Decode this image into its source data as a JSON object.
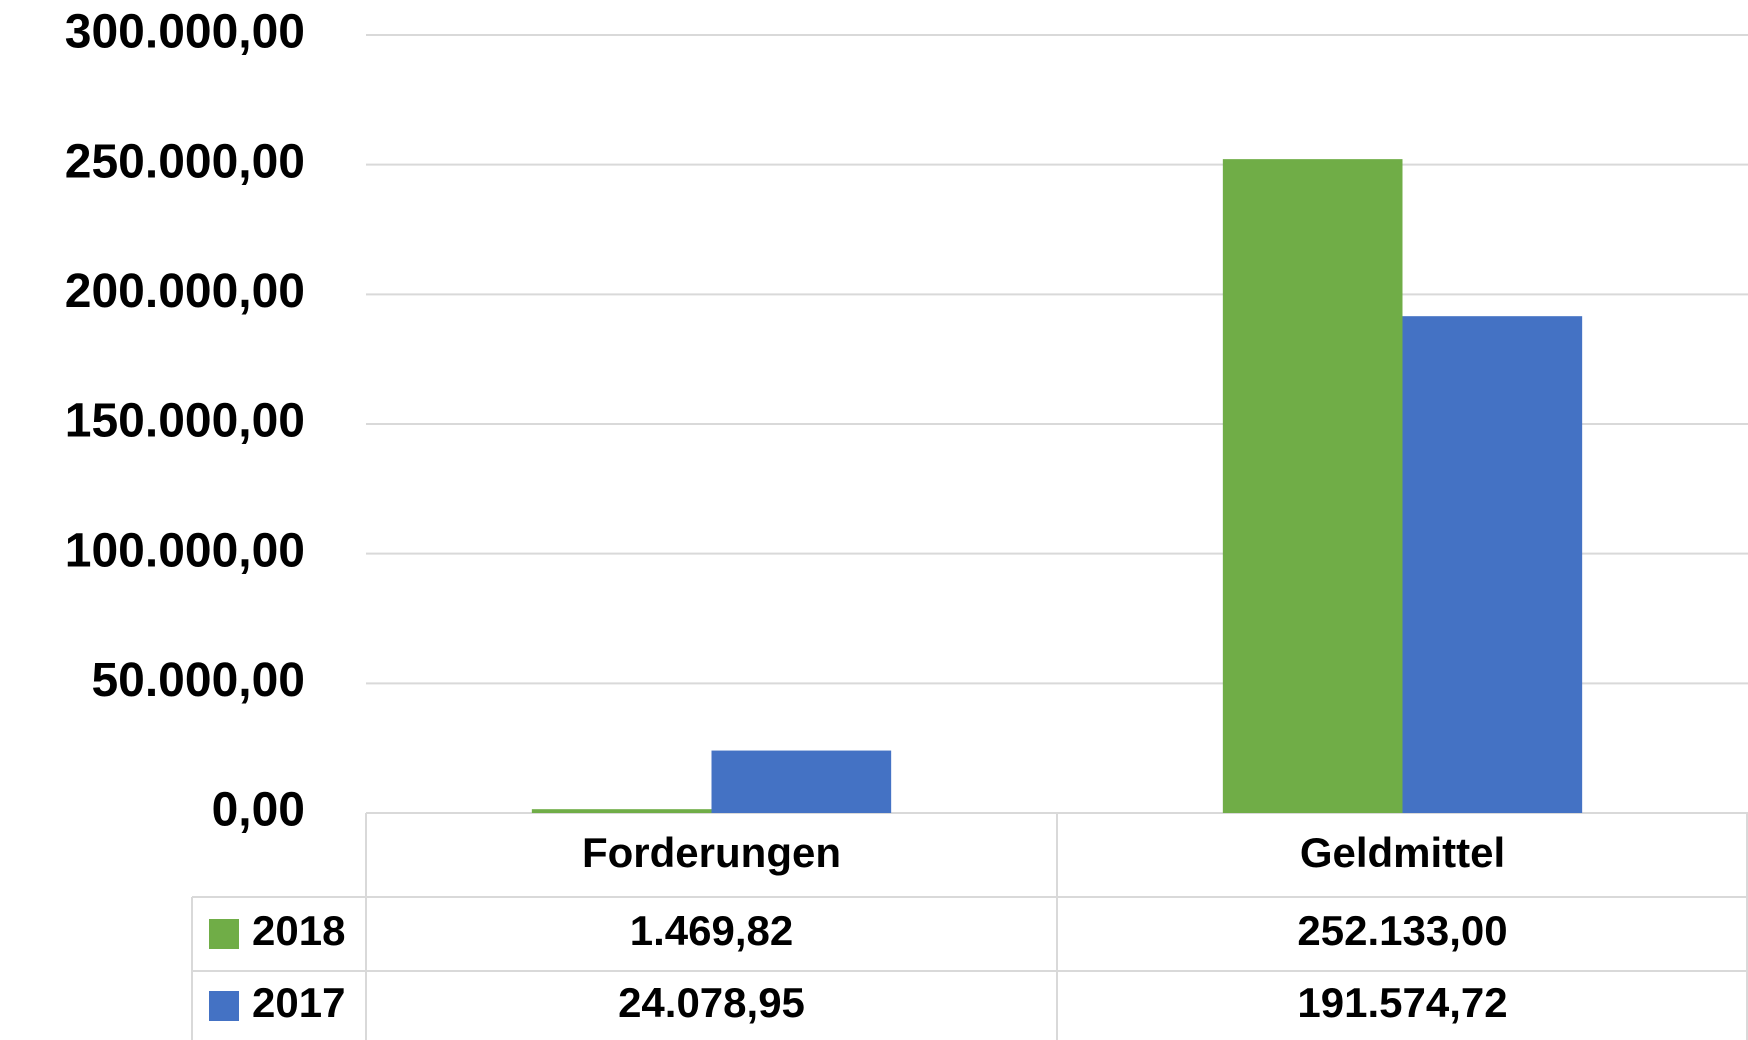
{
  "chart_data": {
    "type": "bar",
    "categories": [
      "Forderungen",
      "Geldmittel"
    ],
    "series": [
      {
        "name": "2018",
        "color": "#70ad47",
        "values": [
          1469.82,
          252133
        ],
        "value_labels": [
          "1.469,82",
          "252.133,00"
        ]
      },
      {
        "name": "2017",
        "color": "#4472c4",
        "values": [
          24078.95,
          191574.72
        ],
        "value_labels": [
          "24.078,95",
          "191.574,72"
        ]
      }
    ],
    "ylim": [
      0,
      300000
    ],
    "yticks": [
      {
        "value": 0,
        "label": "0,00"
      },
      {
        "value": 50000,
        "label": "50.000,00"
      },
      {
        "value": 100000,
        "label": "100.000,00"
      },
      {
        "value": 150000,
        "label": "150.000,00"
      },
      {
        "value": 200000,
        "label": "200.000,00"
      },
      {
        "value": 250000,
        "label": "250.000,00"
      },
      {
        "value": 300000,
        "label": "300.000,00"
      }
    ],
    "grid": true
  }
}
